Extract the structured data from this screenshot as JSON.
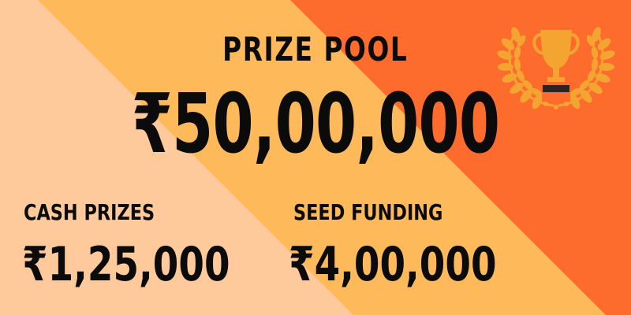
{
  "title": "PRIZE POOL",
  "total_amount": "₹50,00,000",
  "prizes": [
    {
      "label": "CASH PRIZES",
      "amount": "₹1,25,000"
    },
    {
      "label": "SEED FUNDING",
      "amount": "₹4,00,000"
    }
  ],
  "icons": {
    "award": "trophy-laurel-icon"
  },
  "colors": {
    "peach": "#FFCA9B",
    "amber": "#FDB95A",
    "orange": "#FD6C2C",
    "text": "#0B0B0B",
    "gold": "#F4A531"
  }
}
